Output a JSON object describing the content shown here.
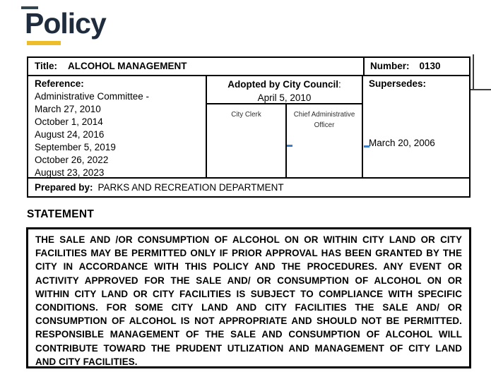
{
  "logo": {
    "wordmark": "Policy",
    "wordmark_color": "#1e2c3d",
    "underline_color": "#eebd2b"
  },
  "table": {
    "title_label": "Title:",
    "title_value": "ALCOHOL MANAGEMENT",
    "number_label": "Number:",
    "number_value": "0130",
    "reference": {
      "label": "Reference:",
      "items": [
        "Administrative Committee -",
        "March 27, 2010",
        "October 1, 2014",
        "August 24, 2016",
        "September 5, 2019",
        "October 26, 2022",
        "August 23, 2023"
      ]
    },
    "adopted": {
      "label": "Adopted by City Council",
      "colon": ":",
      "date": "April 5, 2010",
      "signatories": [
        "City Clerk",
        "Chief Administrative Officer"
      ]
    },
    "supersedes": {
      "label": "Supersedes:",
      "date": "March 20, 2006"
    },
    "prepared_by_label": "Prepared by:",
    "prepared_by_value": "PARKS AND RECREATION DEPARTMENT"
  },
  "statement": {
    "heading": "STATEMENT",
    "lines": [
      "THE SALE AND /OR CONSUMPTION OF ALCOHOL ON OR WITHIN CITY LAND OR CITY",
      "FACILITIES MAY BE PERMITTED ONLY IF PRIOR APPROVAL HAS BEEN GRANTED BY THE",
      "CITY IN ACCORDANCE WITH THIS POLICY AND THE PROCEDURES. ANY EVENT OR",
      "ACTIVITY APPROVED FOR THE SALE AND/ OR CONSUMPTION OF ALCOHOL ON OR",
      "WITHIN CITY LAND OR CITY FACILITIES IS SUBJECT TO COMPLIANCE WITH SPECIFIC",
      "CONDITIONS. FOR SOME CITY LAND AND CITY FACILITIES THE SALE AND/ OR",
      "CONSUMPTION OF ALCOHOL IS NOT APPROPRIATE AND SHOULD NOT BE PERMITTED.",
      "RESPONSIBLE MANAGEMENT OF THE SALE AND CONSUMPTION OF ALCOHOL WILL",
      "CONTRIBUTE TOWARD THE PRUDENT UTLIZATION AND MANAGEMENT OF CITY LAND",
      "AND CITY FACILITIES."
    ]
  },
  "colors": {
    "border": "#000000",
    "signature_dash": "#3d7ec4",
    "wordmark_navy": "#1e2c3d",
    "accent_yellow": "#eebd2b"
  }
}
